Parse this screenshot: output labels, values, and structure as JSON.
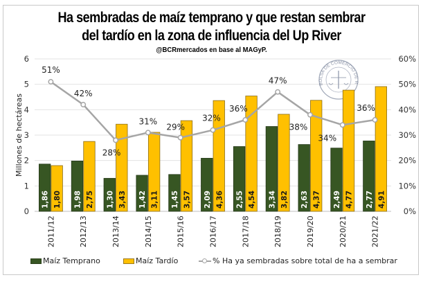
{
  "chart_data": {
    "type": "bar",
    "title": "Ha sembradas de maíz temprano y que restan sembrar",
    "title_line2": "del tardío en la zona de influencia del Up River",
    "subtitle": "@BCRmercados en base al MAGyP.",
    "ylabel": "Millones de hectáreas",
    "ylim": [
      0,
      6
    ],
    "yticks": [
      "0",
      "1",
      "2",
      "3",
      "4",
      "5",
      "6"
    ],
    "y2lim": [
      0,
      60
    ],
    "y2ticks": [
      "0%",
      "10%",
      "20%",
      "30%",
      "40%",
      "50%",
      "60%"
    ],
    "grid": true,
    "legend_position": "bottom",
    "categories": [
      "2011/12",
      "2012/13",
      "2013/14",
      "2014/15",
      "2015/16",
      "2016/17",
      "2017/18",
      "2018/19",
      "2019/20",
      "2020/21",
      "2021/22"
    ],
    "series": [
      {
        "name": "Maíz Temprano",
        "type": "bar",
        "axis": "left",
        "color": "#375623",
        "values": [
          1.86,
          1.98,
          1.3,
          1.42,
          1.45,
          2.09,
          2.55,
          3.34,
          2.63,
          2.49,
          2.77
        ],
        "labels": [
          "1,86",
          "1,98",
          "1,30",
          "1,42",
          "1,45",
          "2,09",
          "2,55",
          "3,34",
          "2,63",
          "2,49",
          "2,77"
        ]
      },
      {
        "name": "Maíz Tardío",
        "type": "bar",
        "axis": "left",
        "color": "#ffc000",
        "values": [
          1.8,
          2.75,
          3.43,
          3.11,
          3.57,
          4.36,
          4.54,
          3.82,
          4.37,
          4.77,
          4.91
        ],
        "labels": [
          "1,80",
          "2,75",
          "3,43",
          "3,11",
          "3,57",
          "4,36",
          "4,54",
          "3,82",
          "4,37",
          "4,77",
          "4,91"
        ]
      },
      {
        "name": "% Ha ya sembradas sobre total de ha a sembrar",
        "type": "line",
        "axis": "right",
        "color": "#a5a5a5",
        "values": [
          51,
          42,
          28,
          31,
          29,
          32,
          36,
          47,
          38,
          34,
          36
        ],
        "labels": [
          "51%",
          "42%",
          "28%",
          "31%",
          "29%",
          "32%",
          "36%",
          "47%",
          "38%",
          "34%",
          "36%"
        ]
      }
    ],
    "watermark": "BOLSA DE COMERCIO DE ROSARIO"
  }
}
